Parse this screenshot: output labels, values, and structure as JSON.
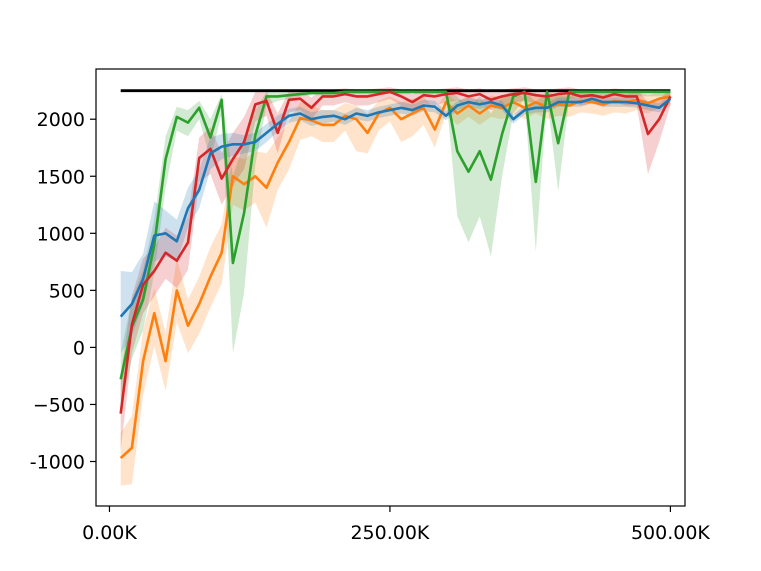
{
  "chart_data": {
    "type": "line",
    "title": "",
    "xlabel": "",
    "ylabel": "",
    "xlim": [
      -12000,
      513000
    ],
    "ylim": [
      -1390,
      2440
    ],
    "xticks": [
      0,
      250000,
      500000
    ],
    "xtick_labels": [
      "0.00K",
      "250.00K",
      "500.00K"
    ],
    "yticks": [
      -1000,
      -500,
      0,
      500,
      1000,
      1500,
      2000
    ],
    "ytick_labels": [
      "-1000",
      "−500",
      "0",
      "500",
      "1000",
      "1500",
      "2000"
    ],
    "grid": false,
    "legend": "none",
    "reference_line": {
      "y": 2250,
      "x": [
        10000,
        500000
      ],
      "color": "#000000"
    },
    "x": [
      10000,
      20000,
      30000,
      40000,
      50000,
      60000,
      70000,
      80000,
      90000,
      100000,
      110000,
      120000,
      130000,
      140000,
      150000,
      160000,
      170000,
      180000,
      190000,
      200000,
      210000,
      220000,
      230000,
      240000,
      250000,
      260000,
      270000,
      280000,
      290000,
      300000,
      310000,
      320000,
      330000,
      340000,
      350000,
      360000,
      370000,
      380000,
      390000,
      400000,
      410000,
      420000,
      430000,
      440000,
      450000,
      460000,
      470000,
      480000,
      490000,
      500000
    ],
    "series": [
      {
        "color": "#ff7f0e",
        "values": [
          -970,
          -880,
          -120,
          300,
          -120,
          500,
          190,
          380,
          620,
          830,
          1500,
          1430,
          1500,
          1400,
          1620,
          1800,
          2010,
          1990,
          1950,
          1950,
          2030,
          2000,
          1880,
          2050,
          2100,
          2000,
          2050,
          2100,
          1910,
          2150,
          2050,
          2120,
          2050,
          2120,
          2100,
          2150,
          2100,
          2150,
          2100,
          2130,
          2120,
          2160,
          2150,
          2130,
          2160,
          2150,
          2170,
          2140,
          2180,
          2200
        ],
        "lower": [
          -1210,
          -1200,
          -420,
          10,
          -380,
          220,
          -50,
          120,
          350,
          560,
          1250,
          1200,
          1270,
          1050,
          1380,
          1560,
          1820,
          1850,
          1800,
          1800,
          1900,
          1720,
          1700,
          1900,
          1980,
          1800,
          1850,
          1950,
          1750,
          2050,
          1950,
          2020,
          1950,
          2020,
          2000,
          2050,
          2000,
          2050,
          2000,
          2030,
          2020,
          2060,
          2050,
          2030,
          2060,
          2050,
          2080,
          2050,
          2100,
          2120
        ],
        "upper": [
          -750,
          -600,
          150,
          520,
          130,
          780,
          420,
          620,
          880,
          1080,
          1680,
          1650,
          1720,
          1700,
          1840,
          1980,
          2150,
          2120,
          2080,
          2080,
          2140,
          2120,
          2050,
          2160,
          2200,
          2150,
          2180,
          2200,
          2080,
          2230,
          2150,
          2210,
          2150,
          2210,
          2190,
          2230,
          2190,
          2230,
          2190,
          2210,
          2200,
          2230,
          2220,
          2210,
          2230,
          2220,
          2240,
          2210,
          2240,
          2260
        ]
      },
      {
        "color": "#2ca02c",
        "values": [
          -280,
          180,
          420,
          900,
          1650,
          2020,
          1970,
          2100,
          1840,
          2170,
          740,
          1180,
          1860,
          2200,
          2200,
          2210,
          2220,
          2230,
          2230,
          2230,
          2240,
          2240,
          2240,
          2240,
          2240,
          2240,
          2240,
          2240,
          2240,
          2240,
          1720,
          1540,
          1720,
          1470,
          1870,
          2200,
          2240,
          1450,
          2240,
          1790,
          2240,
          2240,
          2240,
          2240,
          2240,
          2240,
          2240,
          2240,
          2240,
          2240
        ],
        "lower": [
          -550,
          -100,
          150,
          650,
          1400,
          1900,
          1850,
          2000,
          1650,
          2050,
          -50,
          480,
          1600,
          2120,
          2160,
          2180,
          2200,
          2210,
          2210,
          2210,
          2220,
          2220,
          2220,
          2220,
          2220,
          2220,
          2220,
          2220,
          2220,
          2220,
          1150,
          920,
          1150,
          800,
          1500,
          2050,
          2180,
          840,
          2180,
          1370,
          2180,
          2200,
          2200,
          2200,
          2200,
          2200,
          2200,
          2200,
          2200,
          2200
        ],
        "upper": [
          -50,
          420,
          680,
          1120,
          1850,
          2110,
          2080,
          2160,
          2000,
          2220,
          1500,
          1800,
          2080,
          2240,
          2240,
          2240,
          2240,
          2250,
          2250,
          2250,
          2250,
          2250,
          2250,
          2250,
          2250,
          2250,
          2250,
          2250,
          2250,
          2250,
          2200,
          2100,
          2200,
          2050,
          2200,
          2250,
          2250,
          2150,
          2250,
          2200,
          2250,
          2250,
          2250,
          2250,
          2250,
          2250,
          2250,
          2250,
          2250,
          2250
        ]
      },
      {
        "color": "#d62728",
        "values": [
          -580,
          200,
          550,
          670,
          830,
          760,
          920,
          1660,
          1740,
          1480,
          1650,
          1800,
          2130,
          2160,
          1880,
          2170,
          2180,
          2100,
          2200,
          2200,
          2220,
          2200,
          2200,
          2220,
          2240,
          2200,
          2150,
          2210,
          2200,
          2220,
          2230,
          2200,
          2220,
          2170,
          2200,
          2220,
          2230,
          2210,
          2200,
          2220,
          2230,
          2200,
          2210,
          2190,
          2220,
          2200,
          2200,
          1870,
          2000,
          2200
        ],
        "lower": [
          -900,
          -50,
          300,
          450,
          600,
          520,
          680,
          1450,
          1520,
          1250,
          1420,
          1560,
          1980,
          2030,
          1700,
          2060,
          2080,
          2000,
          2120,
          2120,
          2150,
          2120,
          2120,
          2150,
          2180,
          2120,
          2060,
          2140,
          2120,
          2150,
          2160,
          2120,
          2150,
          2080,
          2120,
          2150,
          2160,
          2140,
          2120,
          2150,
          2160,
          2120,
          2140,
          2110,
          2150,
          2120,
          2120,
          1520,
          1800,
          2120
        ],
        "upper": [
          -250,
          450,
          780,
          880,
          1050,
          980,
          1150,
          1840,
          1930,
          1700,
          1880,
          2020,
          2240,
          2250,
          2050,
          2250,
          2250,
          2190,
          2260,
          2260,
          2270,
          2260,
          2260,
          2270,
          2280,
          2260,
          2220,
          2260,
          2260,
          2270,
          2280,
          2260,
          2270,
          2240,
          2260,
          2270,
          2280,
          2260,
          2260,
          2270,
          2280,
          2260,
          2260,
          2250,
          2270,
          2260,
          2260,
          2150,
          2180,
          2260
        ]
      },
      {
        "color": "#1f77b4",
        "values": [
          270,
          380,
          600,
          980,
          1000,
          930,
          1220,
          1380,
          1700,
          1760,
          1780,
          1780,
          1800,
          1880,
          1960,
          2030,
          2050,
          2000,
          2020,
          2030,
          2000,
          2050,
          2030,
          2060,
          2080,
          2100,
          2080,
          2120,
          2110,
          2030,
          2120,
          2150,
          2130,
          2150,
          2120,
          2000,
          2080,
          2100,
          2100,
          2150,
          2150,
          2150,
          2180,
          2150,
          2150,
          2150,
          2140,
          2120,
          2100,
          2180
        ],
        "lower": [
          -50,
          100,
          380,
          750,
          800,
          750,
          1050,
          1220,
          1560,
          1650,
          1680,
          1700,
          1720,
          1800,
          1890,
          1970,
          1990,
          1940,
          1960,
          1980,
          1950,
          2000,
          1980,
          2010,
          2030,
          2050,
          2030,
          2070,
          2060,
          1990,
          2080,
          2110,
          2090,
          2110,
          2080,
          1960,
          2040,
          2060,
          2060,
          2110,
          2110,
          2110,
          2140,
          2110,
          2110,
          2110,
          2100,
          2080,
          2060,
          2140
        ],
        "upper": [
          670,
          660,
          820,
          1280,
          1200,
          1120,
          1400,
          1560,
          1840,
          1870,
          1880,
          1860,
          1880,
          1960,
          2030,
          2090,
          2110,
          2060,
          2080,
          2080,
          2050,
          2100,
          2080,
          2110,
          2130,
          2150,
          2130,
          2170,
          2160,
          2070,
          2160,
          2190,
          2170,
          2190,
          2160,
          2040,
          2120,
          2140,
          2140,
          2190,
          2190,
          2190,
          2220,
          2190,
          2190,
          2190,
          2180,
          2160,
          2140,
          2220
        ]
      }
    ]
  }
}
